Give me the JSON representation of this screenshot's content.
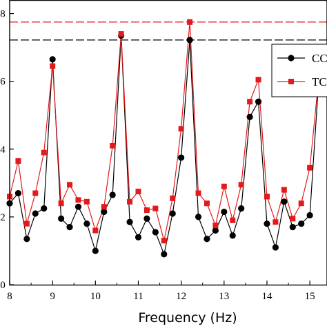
{
  "chart_data": {
    "type": "line",
    "xlabel": "Frequency (Hz)",
    "ylabel": "",
    "title": "",
    "xlim": [
      8.0,
      15.4
    ],
    "ylim": [
      0,
      0.84
    ],
    "x_ticks": [
      8,
      9,
      10,
      11,
      12,
      13,
      14,
      15
    ],
    "y_ticks": [
      0,
      0.2,
      0.4,
      0.6,
      0.8
    ],
    "y_tick_labels": [
      "0",
      "2",
      "4",
      "6",
      "8"
    ],
    "grid": false,
    "legend_placement": "top-right",
    "reference_lines": [
      {
        "y": 0.775,
        "color": "#e31a1c",
        "style": "dashed"
      },
      {
        "y": 0.722,
        "color": "#000000",
        "style": "dashed"
      }
    ],
    "series": [
      {
        "name": "CC",
        "color": "#000000",
        "marker": "circle",
        "x": [
          8.0,
          8.2,
          8.4,
          8.6,
          8.8,
          9.0,
          9.2,
          9.4,
          9.6,
          9.8,
          10.0,
          10.2,
          10.4,
          10.6,
          10.8,
          11.0,
          11.2,
          11.4,
          11.6,
          11.8,
          12.0,
          12.2,
          12.4,
          12.6,
          12.8,
          13.0,
          13.2,
          13.4,
          13.6,
          13.8,
          14.0,
          14.2,
          14.4,
          14.6,
          14.8,
          15.0,
          15.2,
          15.4
        ],
        "y": [
          0.24,
          0.27,
          0.135,
          0.21,
          0.225,
          0.665,
          0.195,
          0.17,
          0.23,
          0.18,
          0.1,
          0.215,
          0.265,
          0.735,
          0.185,
          0.14,
          0.195,
          0.155,
          0.09,
          0.21,
          0.375,
          0.722,
          0.2,
          0.135,
          0.16,
          0.215,
          0.145,
          0.225,
          0.495,
          0.54,
          0.18,
          0.11,
          0.245,
          0.17,
          0.18,
          0.205,
          0.59,
          0.61
        ]
      },
      {
        "name": "TC",
        "color": "#e31a1c",
        "marker": "square",
        "x": [
          8.0,
          8.2,
          8.4,
          8.6,
          8.8,
          9.0,
          9.2,
          9.4,
          9.6,
          9.8,
          10.0,
          10.2,
          10.4,
          10.6,
          10.8,
          11.0,
          11.2,
          11.4,
          11.6,
          11.8,
          12.0,
          12.2,
          12.4,
          12.6,
          12.8,
          13.0,
          13.2,
          13.4,
          13.6,
          13.8,
          14.0,
          14.2,
          14.4,
          14.6,
          14.8,
          15.0,
          15.2,
          15.4
        ],
        "y": [
          0.26,
          0.365,
          0.18,
          0.27,
          0.39,
          0.645,
          0.24,
          0.295,
          0.25,
          0.245,
          0.16,
          0.23,
          0.41,
          0.74,
          0.245,
          0.275,
          0.22,
          0.225,
          0.13,
          0.255,
          0.46,
          0.775,
          0.27,
          0.24,
          0.175,
          0.29,
          0.19,
          0.295,
          0.54,
          0.605,
          0.26,
          0.185,
          0.28,
          0.195,
          0.24,
          0.345,
          0.6,
          0.62
        ]
      }
    ]
  }
}
